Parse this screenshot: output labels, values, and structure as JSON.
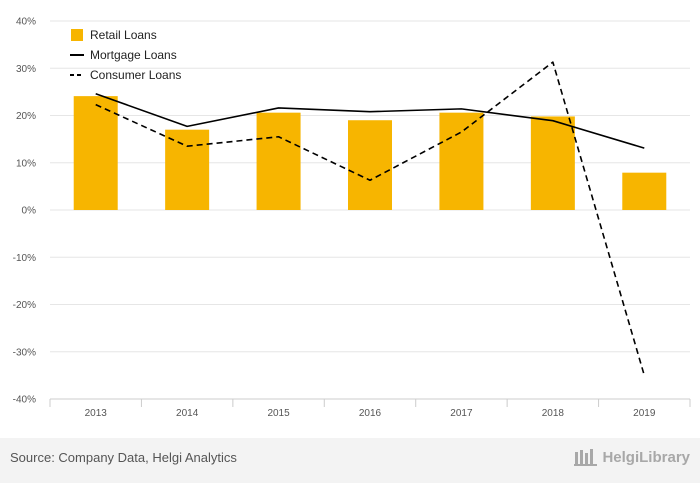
{
  "chart_data": {
    "type": "bar",
    "title": "",
    "xlabel": "",
    "ylabel": "",
    "categories": [
      "2013",
      "2014",
      "2015",
      "2016",
      "2017",
      "2018",
      "2019"
    ],
    "ylim": [
      -40,
      40
    ],
    "yticks": [
      40,
      30,
      20,
      10,
      0,
      -10,
      -20,
      -30,
      -40
    ],
    "ytick_labels": [
      "40%",
      "30%",
      "20%",
      "10%",
      "0%",
      "-10%",
      "-20%",
      "-30%",
      "-40%"
    ],
    "grid": true,
    "legend_position": "top-left",
    "series": [
      {
        "name": "Retail Loans",
        "kind": "bar",
        "color": "#f7b500",
        "values": [
          24.1,
          17.0,
          20.6,
          19.0,
          20.6,
          19.8,
          7.9
        ]
      },
      {
        "name": "Mortgage Loans",
        "kind": "line",
        "style": "solid",
        "color": "#000000",
        "values": [
          24.6,
          17.7,
          21.6,
          20.8,
          21.4,
          18.9,
          13.1
        ]
      },
      {
        "name": "Consumer Loans",
        "kind": "line",
        "style": "dashed",
        "color": "#000000",
        "values": [
          22.3,
          13.5,
          15.5,
          6.3,
          16.5,
          31.3,
          -35.0
        ]
      }
    ]
  },
  "footer": {
    "source": "Source: Company Data, Helgi Analytics",
    "brand": "HelgiLibrary"
  },
  "colors": {
    "grid": "#e6e6e6",
    "axis": "#cccccc",
    "footer_bg": "#f3f3f3"
  }
}
